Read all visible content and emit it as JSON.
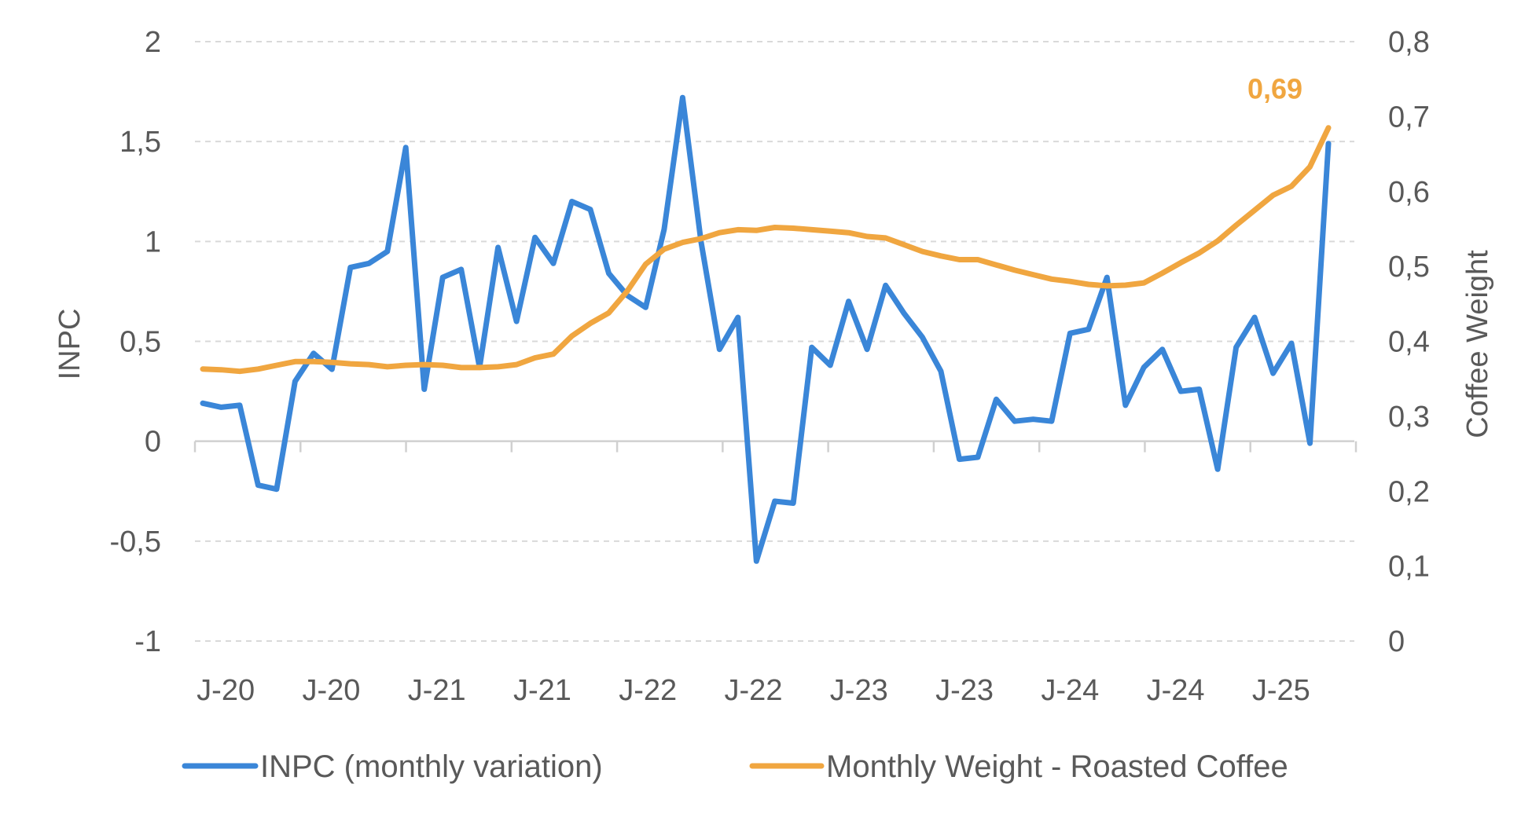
{
  "chart_data": {
    "type": "line",
    "title": "",
    "x_tick_labels": [
      "J-20",
      "J-20",
      "J-21",
      "J-21",
      "J-22",
      "J-22",
      "J-23",
      "J-23",
      "J-24",
      "J-24",
      "J-25"
    ],
    "y_left": {
      "label": "INPC",
      "range": [
        -1,
        2
      ],
      "ticks": [
        2,
        1.5,
        1,
        0.5,
        0,
        -0.5,
        -1
      ],
      "tick_labels": [
        "2",
        "1,5",
        "1",
        "0,5",
        "0",
        "-0,5",
        "-1"
      ]
    },
    "y_right": {
      "label": "Coffee Weight",
      "range": [
        0,
        0.8
      ],
      "ticks": [
        0.8,
        0.7,
        0.6,
        0.5,
        0.4,
        0.3,
        0.2,
        0.1,
        0
      ],
      "tick_labels": [
        "0,8",
        "0,7",
        "0,6",
        "0,5",
        "0,4",
        "0,3",
        "0,2",
        "0,1",
        "0"
      ]
    },
    "grid": true,
    "legend_position": "bottom",
    "x": [
      "2020-01",
      "2020-02",
      "2020-03",
      "2020-04",
      "2020-05",
      "2020-06",
      "2020-07",
      "2020-08",
      "2020-09",
      "2020-10",
      "2020-11",
      "2020-12",
      "2021-01",
      "2021-02",
      "2021-03",
      "2021-04",
      "2021-05",
      "2021-06",
      "2021-07",
      "2021-08",
      "2021-09",
      "2021-10",
      "2021-11",
      "2021-12",
      "2022-01",
      "2022-02",
      "2022-03",
      "2022-04",
      "2022-05",
      "2022-06",
      "2022-07",
      "2022-08",
      "2022-09",
      "2022-10",
      "2022-11",
      "2022-12",
      "2023-01",
      "2023-02",
      "2023-03",
      "2023-04",
      "2023-05",
      "2023-06",
      "2023-07",
      "2023-08",
      "2023-09",
      "2023-10",
      "2023-11",
      "2023-12",
      "2024-01",
      "2024-02",
      "2024-03",
      "2024-04",
      "2024-05",
      "2024-06",
      "2024-07",
      "2024-08",
      "2024-09",
      "2024-10",
      "2024-11",
      "2024-12",
      "2025-01",
      "2025-02"
    ],
    "series": [
      {
        "name": "INPC (monthly variation)",
        "axis": "left",
        "color": "#3a86d8",
        "values": [
          0.19,
          0.17,
          0.18,
          -0.22,
          -0.24,
          0.3,
          0.44,
          0.36,
          0.87,
          0.89,
          0.95,
          1.47,
          0.26,
          0.82,
          0.86,
          0.37,
          0.97,
          0.6,
          1.02,
          0.89,
          1.2,
          1.16,
          0.84,
          0.73,
          0.67,
          1.06,
          1.72,
          1.0,
          0.46,
          0.62,
          -0.6,
          -0.3,
          -0.31,
          0.47,
          0.38,
          0.7,
          0.46,
          0.78,
          0.64,
          0.52,
          0.35,
          -0.09,
          -0.08,
          0.21,
          0.1,
          0.11,
          0.1,
          0.54,
          0.56,
          0.82,
          0.18,
          0.37,
          0.46,
          0.25,
          0.26,
          -0.14,
          0.47,
          0.62,
          0.34,
          0.49,
          -0.01,
          1.49
        ]
      },
      {
        "name": "Monthly Weight - Roasted Coffee",
        "axis": "right",
        "color": "#f0a640",
        "values": [
          0.363,
          0.362,
          0.36,
          0.363,
          0.368,
          0.373,
          0.373,
          0.372,
          0.37,
          0.369,
          0.366,
          0.368,
          0.369,
          0.368,
          0.365,
          0.365,
          0.366,
          0.369,
          0.378,
          0.383,
          0.407,
          0.424,
          0.438,
          0.467,
          0.503,
          0.523,
          0.532,
          0.537,
          0.545,
          0.549,
          0.548,
          0.552,
          0.551,
          0.549,
          0.547,
          0.545,
          0.54,
          0.538,
          0.529,
          0.52,
          0.514,
          0.509,
          0.509,
          0.502,
          0.495,
          0.489,
          0.483,
          0.48,
          0.476,
          0.474,
          0.475,
          0.478,
          0.491,
          0.505,
          0.518,
          0.534,
          0.555,
          0.575,
          0.595,
          0.607,
          0.633,
          0.685
        ]
      }
    ],
    "annotations": [
      {
        "text": "0,69",
        "series": "Monthly Weight - Roasted Coffee",
        "point": "last",
        "color": "#f0a640"
      }
    ]
  }
}
